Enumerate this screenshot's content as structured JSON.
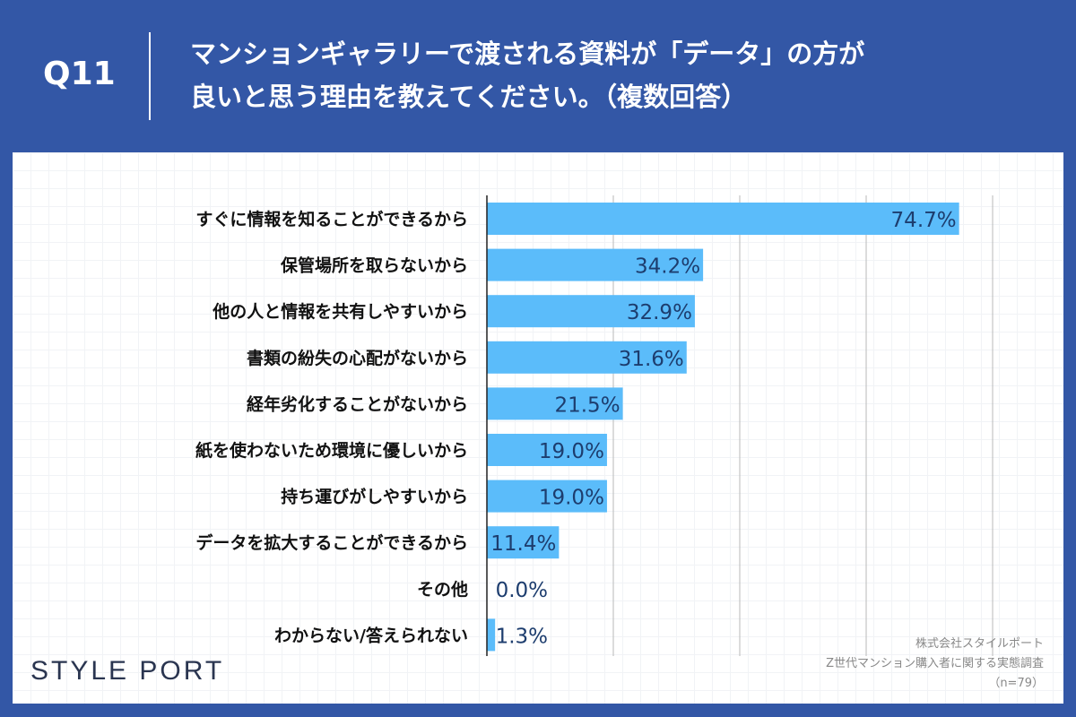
{
  "header": {
    "question_number": "Q11",
    "title_line1": "マンションギャラリーで渡される資料が「データ」の方が",
    "title_line2": "良いと思う理由を教えてください。（複数回答）"
  },
  "chart_data": {
    "type": "bar",
    "orientation": "horizontal",
    "categories": [
      "すぐに情報を知ることができるから",
      "保管場所を取らないから",
      "他の人と情報を共有しやすいから",
      "書類の紛失の心配がないから",
      "経年劣化することがないから",
      "紙を使わないため環境に優しいから",
      "持ち運びがしやすいから",
      "データを拡大することができるから",
      "その他",
      "わからない/答えられない"
    ],
    "values": [
      74.7,
      34.2,
      32.9,
      31.6,
      21.5,
      19.0,
      19.0,
      11.4,
      0.0,
      1.3
    ],
    "data_labels": [
      "74.7%",
      "34.2%",
      "32.9%",
      "31.6%",
      "21.5%",
      "19.0%",
      "19.0%",
      "11.4%",
      "0.0%",
      "1.3%"
    ],
    "xlim": [
      0,
      80
    ],
    "grid_step": 20,
    "grid": true,
    "unit": "%",
    "bar_color": "#5bbcfa",
    "label_color": "#1d3d6e"
  },
  "footer": {
    "logo": "STYLE PORT",
    "source_line1": "株式会社スタイルポート",
    "source_line2": "Z世代マンション購入者に関する実態調査",
    "source_line3": "（n=79）"
  }
}
